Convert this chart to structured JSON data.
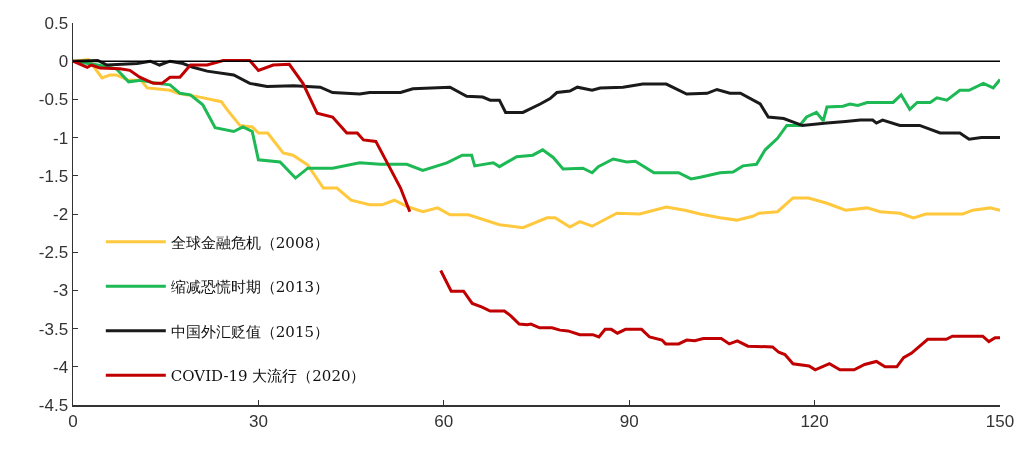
{
  "chart_data": {
    "type": "line",
    "xlim": [
      0,
      150
    ],
    "xticks": [
      0,
      30,
      60,
      90,
      120,
      150
    ],
    "ylim": [
      -4.5,
      0.5
    ],
    "yticks": [
      0.5,
      0,
      -0.5,
      -1,
      -1.5,
      -2,
      -2.5,
      -3,
      -3.5,
      -4,
      -4.5
    ],
    "grid": false,
    "legend": "bottom left",
    "marker": "none",
    "line_style": "solid",
    "ref_lines": [
      {
        "axis": "y",
        "value": 0,
        "color": "#000000"
      }
    ],
    "series": [
      {
        "name": "全球金融危机（2008）",
        "color": "#ffc83d",
        "x": [
          0,
          2.5,
          4.7,
          6,
          7,
          9,
          11,
          12,
          15.7,
          17,
          20.5,
          24,
          25,
          27,
          29,
          30,
          31.5,
          34,
          35.6,
          38,
          40.5,
          42.7,
          45,
          48,
          50,
          52,
          54,
          56.6,
          59,
          61,
          64,
          69,
          72.8,
          76.7,
          78,
          80.4,
          82,
          84,
          88,
          91.7,
          96,
          99,
          101.5,
          104.7,
          107.4,
          110,
          111,
          114,
          116.5,
          119,
          122,
          125,
          128.5,
          130.6,
          133.8,
          136,
          138,
          140.8,
          144,
          145.6,
          148.4,
          150
        ],
        "values": [
          0,
          0.02,
          -0.22,
          -0.18,
          -0.18,
          -0.25,
          -0.25,
          -0.35,
          -0.38,
          -0.42,
          -0.47,
          -0.53,
          -0.64,
          -0.84,
          -0.86,
          -0.94,
          -0.94,
          -1.2,
          -1.23,
          -1.36,
          -1.66,
          -1.66,
          -1.82,
          -1.88,
          -1.88,
          -1.82,
          -1.9,
          -1.97,
          -1.92,
          -2.01,
          -2.01,
          -2.14,
          -2.18,
          -2.05,
          -2.05,
          -2.17,
          -2.1,
          -2.16,
          -1.99,
          -2,
          -1.91,
          -1.95,
          -2,
          -2.05,
          -2.08,
          -2.03,
          -1.99,
          -1.97,
          -1.79,
          -1.79,
          -1.86,
          -1.95,
          -1.92,
          -1.97,
          -1.99,
          -2.05,
          -2,
          -2,
          -2,
          -1.95,
          -1.92,
          -1.95
        ]
      },
      {
        "name": "缩减恐慌时期（2013）",
        "color": "#1db954",
        "x": [
          0,
          4,
          7,
          9,
          11,
          13.6,
          15.7,
          17.3,
          19,
          21,
          23,
          26,
          27.5,
          29,
          30,
          33.5,
          36,
          38,
          42,
          46.4,
          49.7,
          54,
          56.6,
          60.5,
          63,
          64.5,
          65,
          68,
          69,
          71.8,
          74.4,
          76,
          77.7,
          79.3,
          82.5,
          84,
          85,
          87.4,
          89.6,
          91,
          94,
          98,
          100,
          101.5,
          104.7,
          106.8,
          108.4,
          110.6,
          112,
          114,
          115.5,
          117.6,
          118.7,
          120.3,
          121.4,
          122,
          124.6,
          125.7,
          127,
          128.5,
          132.7,
          134,
          135.4,
          136.6,
          138.7,
          139.8,
          141.4,
          143.5,
          145,
          147.3,
          148.9,
          150
        ],
        "values": [
          0,
          -0.05,
          -0.1,
          -0.27,
          -0.25,
          -0.29,
          -0.31,
          -0.42,
          -0.44,
          -0.57,
          -0.87,
          -0.92,
          -0.86,
          -0.92,
          -1.29,
          -1.32,
          -1.53,
          -1.4,
          -1.4,
          -1.33,
          -1.35,
          -1.35,
          -1.43,
          -1.33,
          -1.23,
          -1.23,
          -1.37,
          -1.33,
          -1.38,
          -1.25,
          -1.23,
          -1.16,
          -1.26,
          -1.41,
          -1.4,
          -1.46,
          -1.38,
          -1.28,
          -1.32,
          -1.31,
          -1.46,
          -1.46,
          -1.54,
          -1.52,
          -1.46,
          -1.45,
          -1.37,
          -1.35,
          -1.16,
          -1.01,
          -0.84,
          -0.84,
          -0.73,
          -0.67,
          -0.78,
          -0.6,
          -0.59,
          -0.56,
          -0.58,
          -0.54,
          -0.54,
          -0.44,
          -0.63,
          -0.54,
          -0.54,
          -0.48,
          -0.51,
          -0.38,
          -0.38,
          -0.29,
          -0.35,
          -0.24
        ]
      },
      {
        "name": "中国外汇贬值（2015）",
        "color": "#1a1a1a",
        "x": [
          0,
          4,
          5.5,
          10.4,
          12.5,
          14,
          15.7,
          17.8,
          19.4,
          21.7,
          26,
          28.6,
          31.4,
          35.7,
          40,
          42,
          46.4,
          48,
          53,
          55,
          61,
          63.7,
          66.3,
          67.5,
          69,
          70,
          72.8,
          75.6,
          77.2,
          78.3,
          80.4,
          81.6,
          84,
          85.3,
          89,
          92.2,
          96,
          99.3,
          102.6,
          104.2,
          106.3,
          108,
          111.2,
          112.5,
          115,
          117,
          118,
          122,
          125,
          127.4,
          129.4,
          130,
          131,
          133.8,
          137,
          140.3,
          143.5,
          145,
          147,
          150
        ],
        "values": [
          0,
          0.01,
          -0.05,
          -0.03,
          0,
          -0.05,
          0,
          -0.03,
          -0.08,
          -0.13,
          -0.18,
          -0.29,
          -0.33,
          -0.32,
          -0.34,
          -0.41,
          -0.43,
          -0.41,
          -0.41,
          -0.36,
          -0.34,
          -0.46,
          -0.47,
          -0.51,
          -0.51,
          -0.67,
          -0.67,
          -0.56,
          -0.49,
          -0.41,
          -0.39,
          -0.34,
          -0.38,
          -0.35,
          -0.34,
          -0.3,
          -0.3,
          -0.43,
          -0.42,
          -0.37,
          -0.42,
          -0.42,
          -0.56,
          -0.73,
          -0.75,
          -0.81,
          -0.84,
          -0.81,
          -0.79,
          -0.77,
          -0.77,
          -0.81,
          -0.77,
          -0.84,
          -0.84,
          -0.94,
          -0.94,
          -1.02,
          -1,
          -1
        ]
      },
      {
        "name": "COVID-19 大流行（2020）",
        "color": "#c00000",
        "x": [
          0,
          2.3,
          3,
          4.4,
          7.6,
          9.2,
          10.8,
          13,
          14.4,
          15.7,
          17.3,
          19,
          21.7,
          24.3,
          28.6,
          30,
          32.4,
          35,
          37.2,
          39.5,
          42,
          44.3,
          46,
          47,
          49,
          51.3,
          53,
          54.5,
          57,
          59.5,
          61.2,
          63.2,
          64.6,
          66.2,
          67.5,
          69.8,
          70.8,
          72.2,
          73.5,
          74.1,
          75.5,
          77.5,
          78.8,
          80.1,
          82,
          84.1,
          85.1,
          86.1,
          87.1,
          88.1,
          89.4,
          92,
          93.3,
          95.3,
          95.9,
          98,
          99.3,
          100.6,
          102,
          104.9,
          106.2,
          107.5,
          109.2,
          113.2,
          114.2,
          115.2,
          116.5,
          119.1,
          120.1,
          122.4,
          124.1,
          126.4,
          128.1,
          130,
          131.4,
          133.3,
          134.4,
          135.7,
          138.3,
          141.3,
          142.3,
          147.2,
          148.2,
          149.2,
          150
        ],
        "values": [
          0,
          -0.08,
          -0.05,
          -0.09,
          -0.1,
          -0.12,
          -0.21,
          -0.29,
          -0.29,
          -0.21,
          -0.21,
          -0.05,
          -0.05,
          0.01,
          0.01,
          -0.12,
          -0.05,
          -0.04,
          -0.29,
          -0.68,
          -0.73,
          -0.94,
          -0.94,
          -1.03,
          -1.05,
          -1.4,
          -1.66,
          -1.97,
          null,
          -2.74,
          -3.01,
          -3.01,
          -3.17,
          -3.22,
          -3.27,
          -3.27,
          -3.33,
          -3.44,
          -3.45,
          -3.44,
          -3.49,
          -3.49,
          -3.52,
          -3.53,
          -3.58,
          -3.58,
          -3.61,
          -3.51,
          -3.51,
          -3.56,
          -3.51,
          -3.51,
          -3.61,
          -3.65,
          -3.7,
          -3.7,
          -3.65,
          -3.66,
          -3.63,
          -3.63,
          -3.7,
          -3.66,
          -3.73,
          -3.74,
          -3.81,
          -3.84,
          -3.96,
          -3.99,
          -4.04,
          -3.96,
          -4.04,
          -4.04,
          -3.97,
          -3.93,
          -4,
          -4,
          -3.88,
          -3.82,
          -3.64,
          -3.64,
          -3.6,
          -3.6,
          -3.67,
          -3.62,
          -3.62
        ]
      }
    ]
  }
}
